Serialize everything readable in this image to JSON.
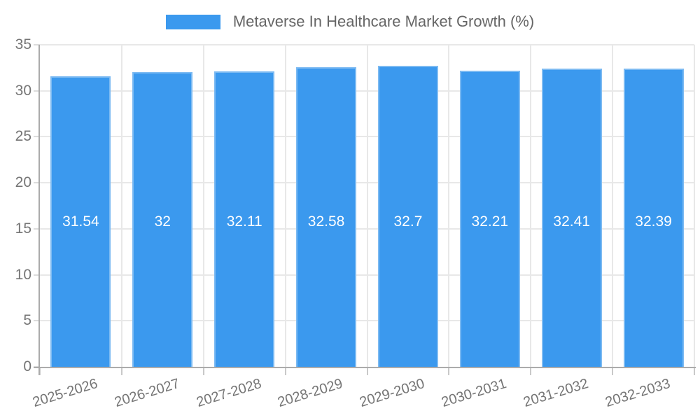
{
  "legend": {
    "label": "Metaverse In Healthcare Market Growth (%)"
  },
  "chart_data": {
    "type": "bar",
    "title": "Metaverse In Healthcare Market Growth (%)",
    "categories": [
      "2025-2026",
      "2026-2027",
      "2027-2028",
      "2028-2029",
      "2029-2030",
      "2030-2031",
      "2031-2032",
      "2032-2033"
    ],
    "values": [
      31.54,
      32,
      32.11,
      32.58,
      32.7,
      32.21,
      32.41,
      32.39
    ],
    "value_labels": [
      "31.54",
      "32",
      "32.11",
      "32.58",
      "32.7",
      "32.21",
      "32.41",
      "32.39"
    ],
    "xlabel": "",
    "ylabel": "",
    "ylim": [
      0,
      35
    ],
    "yticks": [
      0,
      5,
      10,
      15,
      20,
      25,
      30,
      35
    ],
    "grid": true,
    "legend_position": "top",
    "colors": {
      "bar_fill": "#3B99EE",
      "bar_border": "#7CBAF2",
      "grid": "#E8E8E8",
      "axis": "#ABABAB",
      "tick_y": "#DCDCDC",
      "tick_x": "#C9C9C9",
      "tick_label": "#757575",
      "value_label": "#FFFFFF",
      "legend_text": "#666666"
    }
  }
}
